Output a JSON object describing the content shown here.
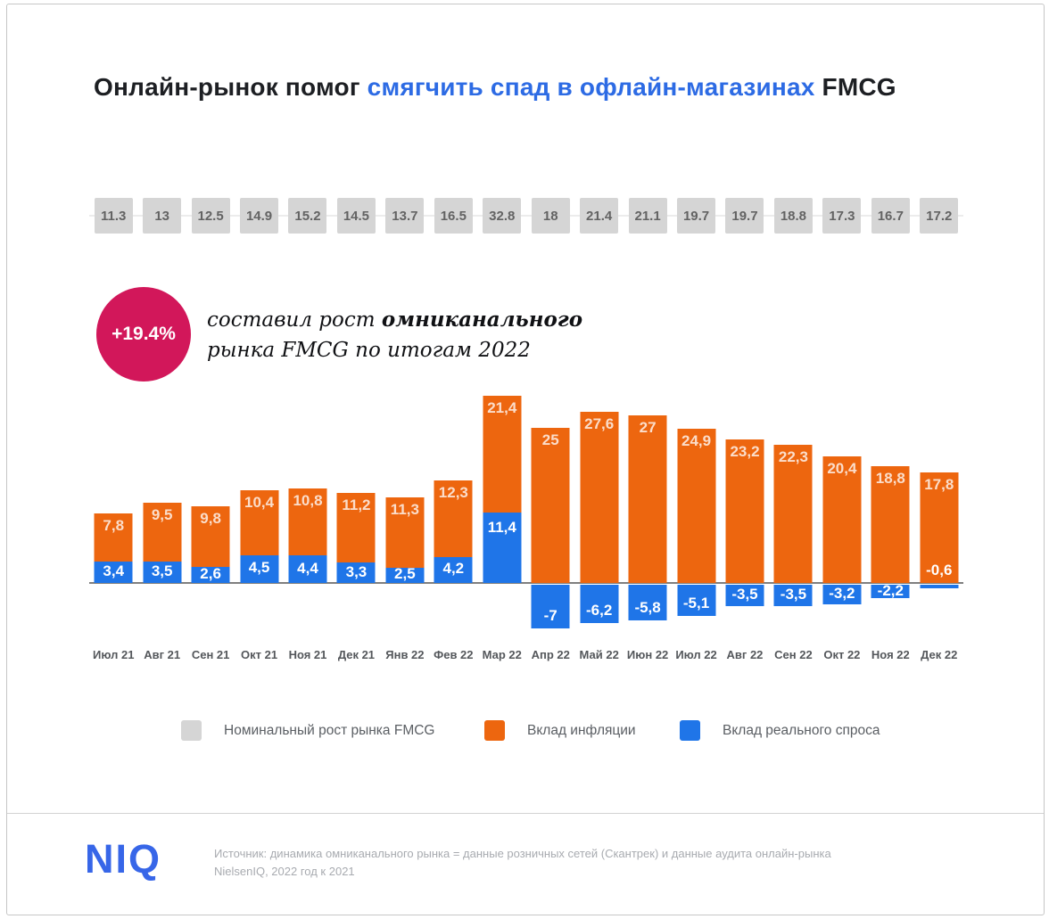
{
  "title": {
    "prefix": "Онлайн-рынок помог ",
    "highlight": "смягчить спад в офлайн-магазинах",
    "suffix": " FMCG"
  },
  "badge": {
    "value": "+19.4%",
    "line1_normal": "составил рост ",
    "line1_bold": "омниканального",
    "line2": "рынка FMCG по итогам 2022"
  },
  "colors": {
    "inflation_orange": "#ed660f",
    "demand_blue": "#1f75e8",
    "nominal_gray": "#d5d5d5",
    "badge_crimson": "#d2175a",
    "title_highlight_blue": "#2d6be4",
    "logo_blue": "#3766e8"
  },
  "chart_data": {
    "type": "bar",
    "stacked": true,
    "grid": false,
    "legend_position": "bottom",
    "ylim": [
      -8,
      33
    ],
    "categories": [
      "Июл 21",
      "Авг 21",
      "Сен 21",
      "Окт 21",
      "Ноя 21",
      "Дек 21",
      "Янв 22",
      "Фев 22",
      "Мар 22",
      "Апр 22",
      "Май 22",
      "Июн 22",
      "Июл 22",
      "Авг 22",
      "Сен 22",
      "Окт 22",
      "Ноя 22",
      "Дек 22"
    ],
    "series": [
      {
        "name": "Номинальный рост рынка FMCG",
        "color": "#d5d5d5",
        "values": [
          11.3,
          13,
          12.5,
          14.9,
          15.2,
          14.5,
          13.7,
          16.5,
          32.8,
          18,
          21.4,
          21.1,
          19.7,
          19.7,
          18.8,
          17.3,
          16.7,
          17.2
        ],
        "labels": [
          "11.3",
          "13",
          "12.5",
          "14.9",
          "15.2",
          "14.5",
          "13.7",
          "16.5",
          "32.8",
          "18",
          "21.4",
          "21.1",
          "19.7",
          "19.7",
          "18.8",
          "17.3",
          "16.7",
          "17.2"
        ]
      },
      {
        "name": "Вклад инфляции",
        "color": "#ed660f",
        "values": [
          7.8,
          9.5,
          9.8,
          10.4,
          10.8,
          11.2,
          11.3,
          12.3,
          21.4,
          25,
          27.6,
          27,
          24.9,
          23.2,
          22.3,
          20.4,
          18.8,
          17.8
        ],
        "labels": [
          "7,8",
          "9,5",
          "9,8",
          "10,4",
          "10,8",
          "11,2",
          "11,3",
          "12,3",
          "21,4",
          "25",
          "27,6",
          "27",
          "24,9",
          "23,2",
          "22,3",
          "20,4",
          "18,8",
          "17,8"
        ]
      },
      {
        "name": "Вклад реального спроса",
        "color": "#1f75e8",
        "values": [
          3.4,
          3.5,
          2.6,
          4.5,
          4.4,
          3.3,
          2.5,
          4.2,
          11.4,
          -7,
          -6.2,
          -5.8,
          -5.1,
          -3.5,
          -3.5,
          -3.2,
          -2.2,
          -0.6
        ],
        "labels": [
          "3,4",
          "3,5",
          "2,6",
          "4,5",
          "4,4",
          "3,3",
          "2,5",
          "4,2",
          "11,4",
          "-7",
          "-6,2",
          "-5,8",
          "-5,1",
          "-3,5",
          "-3,5",
          "-3,2",
          "-2,2",
          "-0,6"
        ]
      }
    ]
  },
  "legend": {
    "items": [
      {
        "label": "Номинальный рост рынка FMCG",
        "color": "#d5d5d5"
      },
      {
        "label": "Вклад инфляции",
        "color": "#ed660f"
      },
      {
        "label": "Вклад реального спроса",
        "color": "#1f75e8"
      }
    ]
  },
  "footer": {
    "logo": "NIQ",
    "source_line1": "Источник: динамика омниканального рынка = данные розничных сетей (Скантрек) и данные аудита онлайн-рынка",
    "source_line2": "NielsenIQ, 2022 год к 2021"
  }
}
